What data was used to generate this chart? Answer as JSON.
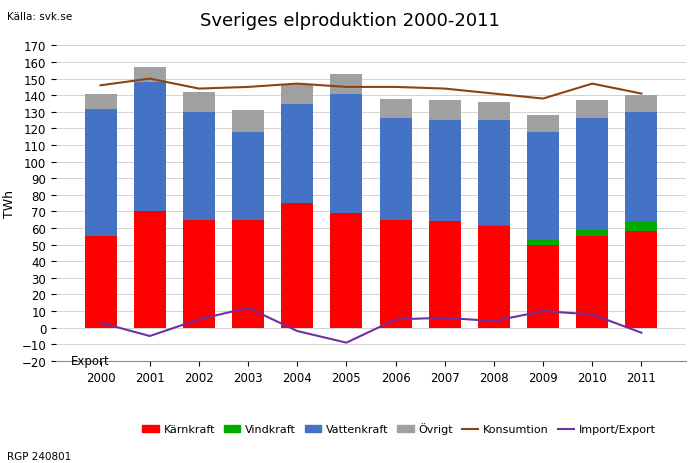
{
  "years": [
    2000,
    2001,
    2002,
    2003,
    2004,
    2005,
    2006,
    2007,
    2008,
    2009,
    2010,
    2011
  ],
  "karnkraft": [
    55,
    70,
    65,
    65,
    75,
    69,
    65,
    64,
    61,
    50,
    55,
    58
  ],
  "vindkraft": [
    0,
    0,
    0,
    0,
    0,
    0,
    0,
    0,
    1,
    3,
    4,
    6
  ],
  "vattenkraft": [
    77,
    78,
    65,
    53,
    60,
    72,
    61,
    61,
    63,
    65,
    67,
    66
  ],
  "ovrigt": [
    9,
    9,
    12,
    13,
    12,
    12,
    12,
    12,
    11,
    10,
    11,
    10
  ],
  "konsumtion": [
    146,
    150,
    144,
    145,
    147,
    145,
    145,
    144,
    141,
    138,
    147,
    141
  ],
  "import_export": [
    3,
    -5,
    5,
    12,
    -2,
    -9,
    5,
    6,
    4,
    10,
    8,
    -3
  ],
  "bar_colors": {
    "karnkraft": "#FF0000",
    "vindkraft": "#00AA00",
    "vattenkraft": "#4472C4",
    "ovrigt": "#A0A0A0"
  },
  "konsumtion_color": "#8B4513",
  "import_export_color": "#7030A0",
  "title": "Sveriges elproduktion 2000-2011",
  "ylabel": "TWh",
  "ylim": [
    -20,
    170
  ],
  "yticks": [
    -20,
    -10,
    0,
    10,
    20,
    30,
    40,
    50,
    60,
    70,
    80,
    90,
    100,
    110,
    120,
    130,
    140,
    150,
    160,
    170
  ],
  "source_label": "Källa: svk.se",
  "footer_label": "RGP 240801",
  "export_label": "Export",
  "legend_items": [
    "Kärnkraft",
    "Vindkraft",
    "Vattenkraft",
    "Övrigt",
    "Konsumtion",
    "Import/Export"
  ],
  "title_fontsize": 13,
  "label_fontsize": 9,
  "tick_fontsize": 8.5
}
